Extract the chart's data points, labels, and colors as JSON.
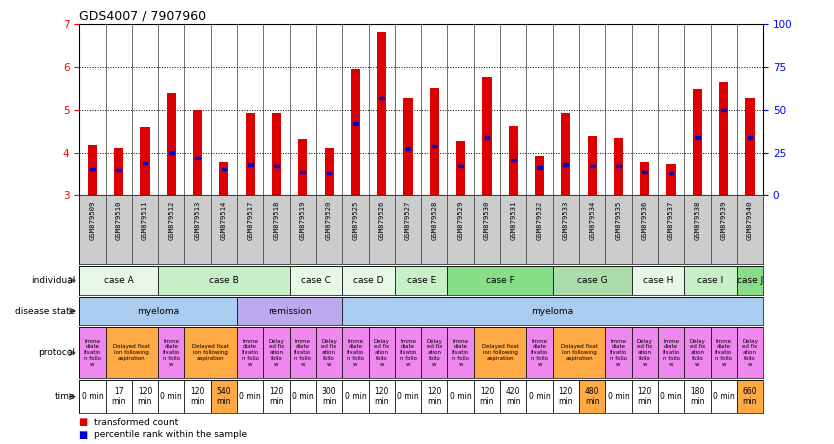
{
  "title": "GDS4007 / 7907960",
  "samples": [
    "GSM879509",
    "GSM879510",
    "GSM879511",
    "GSM879512",
    "GSM879513",
    "GSM879514",
    "GSM879517",
    "GSM879518",
    "GSM879519",
    "GSM879520",
    "GSM879525",
    "GSM879526",
    "GSM879527",
    "GSM879528",
    "GSM879529",
    "GSM879530",
    "GSM879531",
    "GSM879532",
    "GSM879533",
    "GSM879534",
    "GSM879535",
    "GSM879536",
    "GSM879537",
    "GSM879538",
    "GSM879539",
    "GSM879540"
  ],
  "bar_heights": [
    4.18,
    4.1,
    4.6,
    5.4,
    5.0,
    3.78,
    4.93,
    4.92,
    4.32,
    4.1,
    5.95,
    6.83,
    5.27,
    5.52,
    4.27,
    5.78,
    4.62,
    3.92,
    4.93,
    4.38,
    4.35,
    3.78,
    3.73,
    5.5,
    5.65,
    5.27
  ],
  "blue_marker_heights": [
    3.62,
    3.6,
    3.75,
    4.0,
    3.88,
    3.62,
    3.72,
    3.68,
    3.55,
    3.52,
    4.68,
    5.28,
    4.1,
    4.15,
    3.68,
    4.35,
    3.82,
    3.65,
    3.72,
    3.68,
    3.68,
    3.55,
    3.52,
    4.35,
    5.0,
    4.35
  ],
  "ylim_left": [
    3,
    7
  ],
  "ylim_right": [
    0,
    100
  ],
  "yticks_left": [
    3,
    4,
    5,
    6,
    7
  ],
  "yticks_right": [
    0,
    25,
    50,
    75,
    100
  ],
  "bar_color": "#DD0000",
  "marker_color": "#0000CC",
  "xtick_bg_color": "#CCCCCC",
  "individuals": [
    {
      "label": "case A",
      "start": 0,
      "end": 3,
      "color": "#E8F8E8"
    },
    {
      "label": "case B",
      "start": 3,
      "end": 8,
      "color": "#C8F0C8"
    },
    {
      "label": "case C",
      "start": 8,
      "end": 10,
      "color": "#E8F8E8"
    },
    {
      "label": "case D",
      "start": 10,
      "end": 12,
      "color": "#E8F8E8"
    },
    {
      "label": "case E",
      "start": 12,
      "end": 14,
      "color": "#C8F0C8"
    },
    {
      "label": "case F",
      "start": 14,
      "end": 18,
      "color": "#88DD88"
    },
    {
      "label": "case G",
      "start": 18,
      "end": 21,
      "color": "#AADDAA"
    },
    {
      "label": "case H",
      "start": 21,
      "end": 23,
      "color": "#E8F8E8"
    },
    {
      "label": "case I",
      "start": 23,
      "end": 25,
      "color": "#C8F0C8"
    },
    {
      "label": "case J",
      "start": 25,
      "end": 26,
      "color": "#88DD88"
    }
  ],
  "disease_states": [
    {
      "label": "myeloma",
      "start": 0,
      "end": 6,
      "color": "#AACCEE"
    },
    {
      "label": "remission",
      "start": 6,
      "end": 10,
      "color": "#BBAAEE"
    },
    {
      "label": "myeloma",
      "start": 10,
      "end": 26,
      "color": "#AACCEE"
    }
  ],
  "protocols": [
    {
      "label": "Imme\ndiate\nfixatio\nn follo\nw",
      "start": 0,
      "end": 1,
      "color": "#EE88EE"
    },
    {
      "label": "Delayed fixat\nion following\naspiration",
      "start": 1,
      "end": 3,
      "color": "#FFAA44"
    },
    {
      "label": "Imme\ndiate\nfixatio\nn follo\nw",
      "start": 3,
      "end": 4,
      "color": "#EE88EE"
    },
    {
      "label": "Delayed fixat\nion following\naspiration",
      "start": 4,
      "end": 6,
      "color": "#FFAA44"
    },
    {
      "label": "Imme\ndiate\nfixatio\nn follo\nw",
      "start": 6,
      "end": 7,
      "color": "#EE88EE"
    },
    {
      "label": "Delay\ned fix\nation\nfollo\nw",
      "start": 7,
      "end": 8,
      "color": "#EE88EE"
    },
    {
      "label": "Imme\ndiate\nfixatio\nn follo\nw",
      "start": 8,
      "end": 9,
      "color": "#EE88EE"
    },
    {
      "label": "Delay\ned fix\nation\nfollo\nw",
      "start": 9,
      "end": 10,
      "color": "#EE88EE"
    },
    {
      "label": "Imme\ndiate\nfixatio\nn follo\nw",
      "start": 10,
      "end": 11,
      "color": "#EE88EE"
    },
    {
      "label": "Delay\ned fix\nation\nfollo\nw",
      "start": 11,
      "end": 12,
      "color": "#EE88EE"
    },
    {
      "label": "Imme\ndiate\nfixatio\nn follo\nw",
      "start": 12,
      "end": 13,
      "color": "#EE88EE"
    },
    {
      "label": "Delay\ned fix\nation\nfollo\nw",
      "start": 13,
      "end": 14,
      "color": "#EE88EE"
    },
    {
      "label": "Imme\ndiate\nfixatio\nn follo\nw",
      "start": 14,
      "end": 15,
      "color": "#EE88EE"
    },
    {
      "label": "Delayed fixat\nion following\naspiration",
      "start": 15,
      "end": 17,
      "color": "#FFAA44"
    },
    {
      "label": "Imme\ndiate\nfixatio\nn follo\nw",
      "start": 17,
      "end": 18,
      "color": "#EE88EE"
    },
    {
      "label": "Delayed fixat\nion following\naspiration",
      "start": 18,
      "end": 20,
      "color": "#FFAA44"
    },
    {
      "label": "Imme\ndiate\nfixatio\nn follo\nw",
      "start": 20,
      "end": 21,
      "color": "#EE88EE"
    },
    {
      "label": "Delay\ned fix\nation\nfollo\nw",
      "start": 21,
      "end": 22,
      "color": "#EE88EE"
    },
    {
      "label": "Imme\ndiate\nfixatio\nn follo\nw",
      "start": 22,
      "end": 23,
      "color": "#EE88EE"
    },
    {
      "label": "Delay\ned fix\nation\nfollo\nw",
      "start": 23,
      "end": 24,
      "color": "#EE88EE"
    },
    {
      "label": "Imme\ndiate\nfixatio\nn follo\nw",
      "start": 24,
      "end": 25,
      "color": "#EE88EE"
    },
    {
      "label": "Delay\ned fix\nation\nfollo\nw",
      "start": 25,
      "end": 26,
      "color": "#EE88EE"
    }
  ],
  "times": [
    {
      "label": "0 min",
      "start": 0,
      "end": 1,
      "color": "#FFFFFF"
    },
    {
      "label": "17\nmin",
      "start": 1,
      "end": 2,
      "color": "#FFFFFF"
    },
    {
      "label": "120\nmin",
      "start": 2,
      "end": 3,
      "color": "#FFFFFF"
    },
    {
      "label": "0 min",
      "start": 3,
      "end": 4,
      "color": "#FFFFFF"
    },
    {
      "label": "120\nmin",
      "start": 4,
      "end": 5,
      "color": "#FFFFFF"
    },
    {
      "label": "540\nmin",
      "start": 5,
      "end": 6,
      "color": "#FFAA44"
    },
    {
      "label": "0 min",
      "start": 6,
      "end": 7,
      "color": "#FFFFFF"
    },
    {
      "label": "120\nmin",
      "start": 7,
      "end": 8,
      "color": "#FFFFFF"
    },
    {
      "label": "0 min",
      "start": 8,
      "end": 9,
      "color": "#FFFFFF"
    },
    {
      "label": "300\nmin",
      "start": 9,
      "end": 10,
      "color": "#FFFFFF"
    },
    {
      "label": "0 min",
      "start": 10,
      "end": 11,
      "color": "#FFFFFF"
    },
    {
      "label": "120\nmin",
      "start": 11,
      "end": 12,
      "color": "#FFFFFF"
    },
    {
      "label": "0 min",
      "start": 12,
      "end": 13,
      "color": "#FFFFFF"
    },
    {
      "label": "120\nmin",
      "start": 13,
      "end": 14,
      "color": "#FFFFFF"
    },
    {
      "label": "0 min",
      "start": 14,
      "end": 15,
      "color": "#FFFFFF"
    },
    {
      "label": "120\nmin",
      "start": 15,
      "end": 16,
      "color": "#FFFFFF"
    },
    {
      "label": "420\nmin",
      "start": 16,
      "end": 17,
      "color": "#FFFFFF"
    },
    {
      "label": "0 min",
      "start": 17,
      "end": 18,
      "color": "#FFFFFF"
    },
    {
      "label": "120\nmin",
      "start": 18,
      "end": 19,
      "color": "#FFFFFF"
    },
    {
      "label": "480\nmin",
      "start": 19,
      "end": 20,
      "color": "#FFAA44"
    },
    {
      "label": "0 min",
      "start": 20,
      "end": 21,
      "color": "#FFFFFF"
    },
    {
      "label": "120\nmin",
      "start": 21,
      "end": 22,
      "color": "#FFFFFF"
    },
    {
      "label": "0 min",
      "start": 22,
      "end": 23,
      "color": "#FFFFFF"
    },
    {
      "label": "180\nmin",
      "start": 23,
      "end": 24,
      "color": "#FFFFFF"
    },
    {
      "label": "0 min",
      "start": 24,
      "end": 25,
      "color": "#FFFFFF"
    },
    {
      "label": "660\nmin",
      "start": 25,
      "end": 26,
      "color": "#FFAA44"
    }
  ],
  "legend_items": [
    {
      "label": "transformed count",
      "color": "#DD0000"
    },
    {
      "label": "percentile rank within the sample",
      "color": "#0000CC"
    }
  ]
}
